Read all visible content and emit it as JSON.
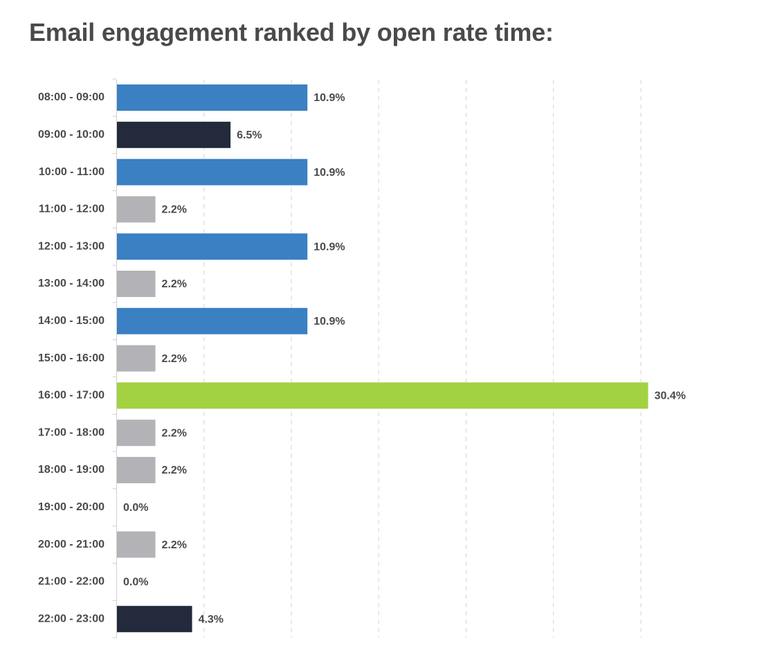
{
  "chart_data": {
    "type": "bar",
    "orientation": "horizontal",
    "title": "Email engagement ranked by open rate time:",
    "xlabel": "",
    "ylabel": "",
    "xlim": [
      0,
      30
    ],
    "grid": true,
    "value_suffix": "%",
    "categories": [
      "08:00 - 09:00",
      "09:00 - 10:00",
      "10:00 - 11:00",
      "11:00 - 12:00",
      "12:00 - 13:00",
      "13:00 - 14:00",
      "14:00 - 15:00",
      "15:00 - 16:00",
      "16:00 - 17:00",
      "17:00 - 18:00",
      "18:00 - 19:00",
      "19:00 - 20:00",
      "20:00 - 21:00",
      "21:00 - 22:00",
      "22:00 - 23:00"
    ],
    "values": [
      10.9,
      6.5,
      10.9,
      2.2,
      10.9,
      2.2,
      10.9,
      2.2,
      30.4,
      2.2,
      2.2,
      0.0,
      2.2,
      0.0,
      4.3
    ],
    "bar_colors": [
      "#3a80c3",
      "#222a3b",
      "#3a80c3",
      "#b3b3b7",
      "#3a80c3",
      "#b3b3b7",
      "#3a80c3",
      "#b3b3b7",
      "#a2d242",
      "#b3b3b7",
      "#b3b3b7",
      "#b3b3b7",
      "#b3b3b7",
      "#b3b3b7",
      "#222a3b"
    ],
    "colors": {
      "axis": "#cfcfcf",
      "grid": "#d3d3d3",
      "text": "#4a4a4a"
    }
  }
}
